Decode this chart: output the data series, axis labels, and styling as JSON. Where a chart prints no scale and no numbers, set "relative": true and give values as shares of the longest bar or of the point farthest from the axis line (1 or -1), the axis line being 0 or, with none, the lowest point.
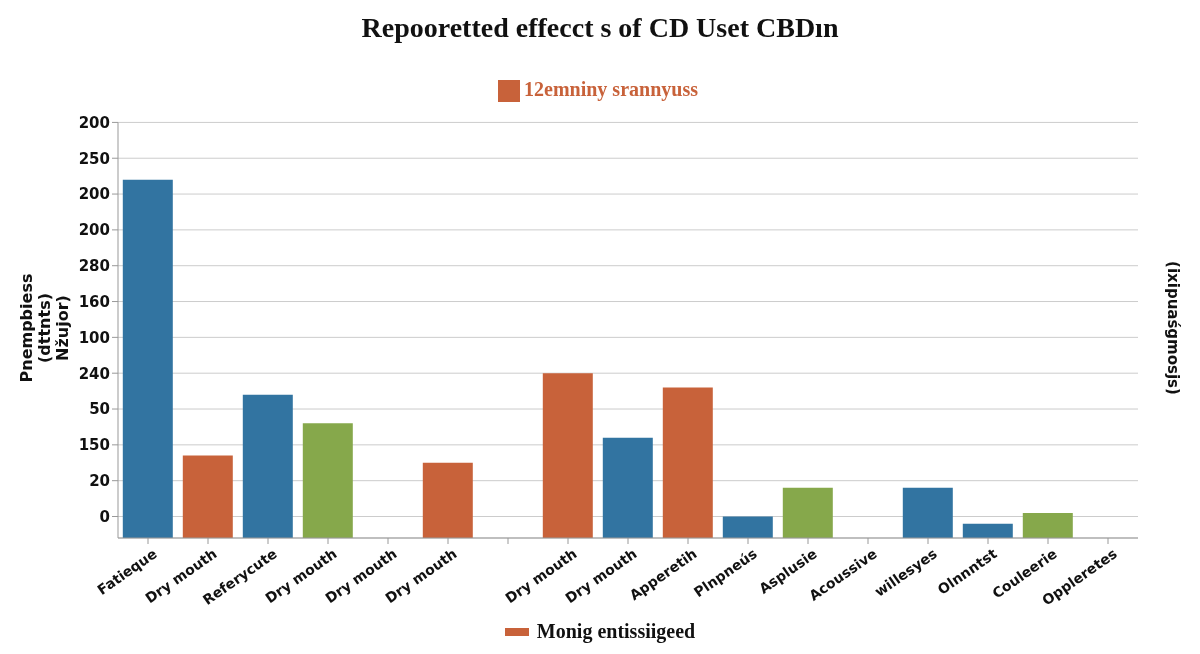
{
  "chart_data": {
    "type": "bar",
    "stacked": true,
    "relative": true,
    "title": "Repooretted effecct s of CD Uset CBDın",
    "ylabel": "Pnempbiess (dttnts) Nžujor)",
    "y2label": "(ixipuaśgmosjs)",
    "categories": [
      "Fatieque",
      "Dry mouth",
      "Referycute",
      "Dry mouth",
      "Dry mouth",
      "Dry mouth",
      null,
      "Dry mouth",
      "Dry mouth",
      "Apperetih",
      "Plnpneús",
      "Asplusie",
      "Acoussive",
      "willesyes",
      "Olnnntst",
      "Couleerie",
      "Oppleretes"
    ],
    "series": [
      {
        "color": "#3274a1",
        "values": [
          1,
          null,
          0.4,
          null,
          null,
          null,
          null,
          null,
          0.28,
          null,
          0.06,
          null,
          null,
          0.14,
          0.04,
          null,
          null
        ]
      },
      {
        "name": "12emniny srannyuss",
        "color": "#c8623a",
        "values": [
          null,
          0.23,
          null,
          null,
          null,
          0.21,
          null,
          0.46,
          null,
          0.42,
          null,
          null,
          null,
          null,
          null,
          null,
          null
        ]
      },
      {
        "color": "#86a84b",
        "values": [
          null,
          null,
          null,
          0.32,
          null,
          null,
          null,
          null,
          null,
          null,
          null,
          0.14,
          null,
          null,
          null,
          0.07,
          null
        ]
      }
    ],
    "grid": "y",
    "legend": "top",
    "annotations": [
      "0",
      "20",
      "150",
      "50",
      "240",
      "100",
      "160",
      "280",
      "200",
      "200",
      "250",
      "200",
      "Monig entissiigeed"
    ]
  }
}
